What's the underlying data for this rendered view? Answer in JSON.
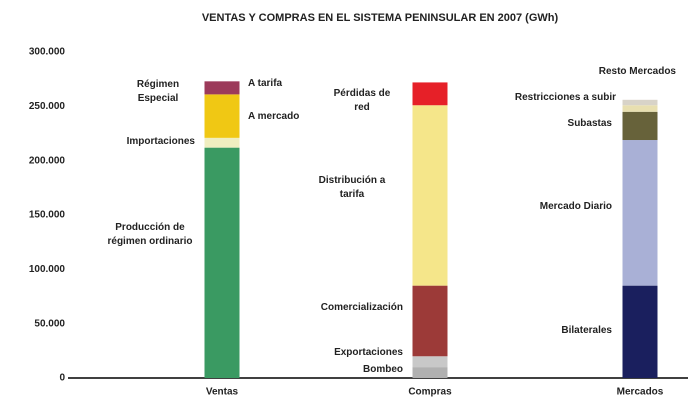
{
  "chart_data": {
    "type": "stacked-bar",
    "title": "VENTAS Y COMPRAS EN EL SISTEMA PENINSULAR EN 2007 (GWh)",
    "categories": [
      "Ventas",
      "Compras",
      "Mercados"
    ],
    "stacks": [
      {
        "segments": [
          {
            "name": "Producción de régimen ordinario",
            "color": "#3a9a62",
            "value": 212000
          },
          {
            "name": "Importaciones",
            "color": "#efeec0",
            "value": 9000
          },
          {
            "name": "A mercado",
            "color": "#f0c814",
            "value": 40000
          },
          {
            "name": "A tarifa",
            "color": "#9c3a5a",
            "value": 12000
          }
        ]
      },
      {
        "segments": [
          {
            "name": "Bombeo",
            "color": "#b0b0b0",
            "value": 10000
          },
          {
            "name": "Exportaciones",
            "color": "#c8c8c8",
            "value": 10000
          },
          {
            "name": "Comercialización",
            "color": "#9c3a38",
            "value": 65000
          },
          {
            "name": "Distribución a tarifa",
            "color": "#f5e68a",
            "value": 166000
          },
          {
            "name": "Pérdidas de red",
            "color": "#e62028",
            "value": 21000
          }
        ]
      },
      {
        "segments": [
          {
            "name": "Bilaterales",
            "color": "#1a1f5e",
            "value": 85000
          },
          {
            "name": "Mercado Diario",
            "color": "#a9b0d6",
            "value": 134000
          },
          {
            "name": "Subastas",
            "color": "#67623a",
            "value": 26000
          },
          {
            "name": "Restricciones a subir",
            "color": "#e8dfb0",
            "value": 6000
          },
          {
            "name": "Resto Mercados",
            "color": "#d8d3c8",
            "value": 5000
          }
        ]
      }
    ],
    "annotations": [
      "Régimen Especial"
    ],
    "ylim": [
      0,
      300000
    ],
    "yticks": [
      0,
      {
        "value": 50000,
        "label": "50.000"
      },
      {
        "value": 100000,
        "label": "100.000"
      },
      {
        "value": 150000,
        "label": "150.000"
      },
      {
        "value": 200000,
        "label": "200.000"
      },
      {
        "value": 250000,
        "label": "250.000"
      },
      {
        "value": 300000,
        "label": "300.000"
      }
    ],
    "title_color": "#1a8fd8"
  }
}
